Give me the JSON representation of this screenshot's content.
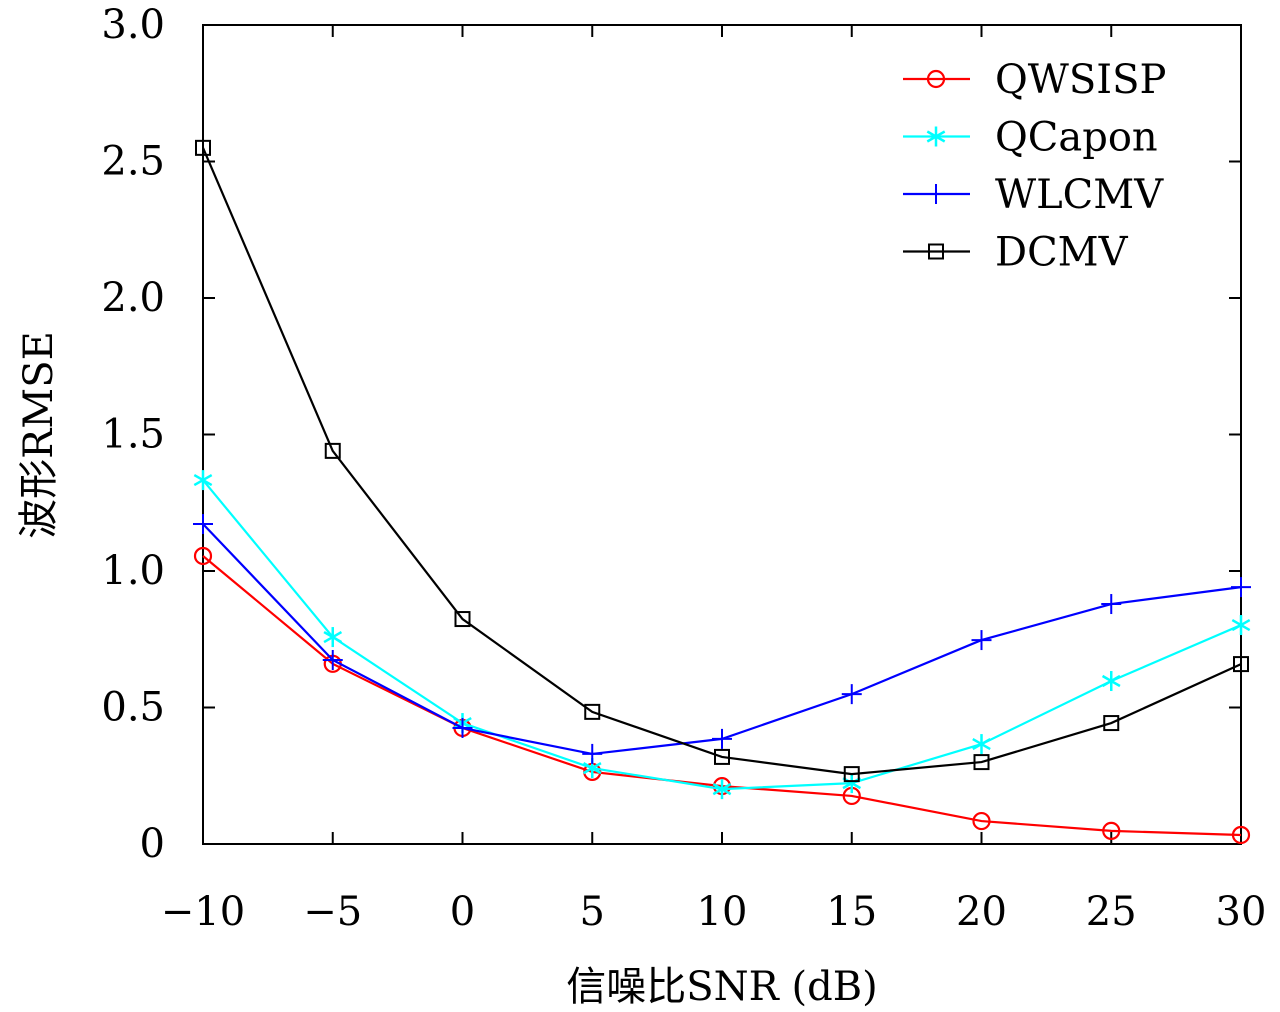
{
  "chart_data": {
    "type": "line",
    "title": "",
    "xlabel": "信噪比SNR (dB)",
    "ylabel": "波形RMSE",
    "xlim": [
      -10,
      30
    ],
    "ylim": [
      0,
      3.0
    ],
    "x": [
      -10,
      -5,
      0,
      5,
      10,
      15,
      20,
      25,
      30
    ],
    "xticks": [
      "−10",
      "−5",
      "0",
      "5",
      "10",
      "15",
      "20",
      "25",
      "30"
    ],
    "xtick_values": [
      -10,
      -5,
      0,
      5,
      10,
      15,
      20,
      25,
      30
    ],
    "yticks": [
      "0",
      "0.5",
      "1.0",
      "1.5",
      "2.0",
      "2.5",
      "3.0"
    ],
    "ytick_values": [
      0,
      0.5,
      1.0,
      1.5,
      2.0,
      2.5,
      3.0
    ],
    "grid": false,
    "legend": "top-right",
    "series": [
      {
        "name": "QWSISP",
        "color": "#ff0000",
        "marker": "circle",
        "values": [
          1.055,
          0.66,
          0.425,
          0.264,
          0.212,
          0.176,
          0.084,
          0.048,
          0.033
        ]
      },
      {
        "name": "QCapon",
        "color": "#00ffff",
        "marker": "asterisk",
        "values": [
          1.333,
          0.758,
          0.443,
          0.278,
          0.201,
          0.223,
          0.366,
          0.597,
          0.802
        ]
      },
      {
        "name": "WLCMV",
        "color": "#0000ff",
        "marker": "plus",
        "values": [
          1.172,
          0.674,
          0.425,
          0.33,
          0.385,
          0.549,
          0.747,
          0.879,
          0.941
        ]
      },
      {
        "name": "DCMV",
        "color": "#000000",
        "marker": "square",
        "values": [
          2.55,
          1.44,
          0.824,
          0.484,
          0.319,
          0.256,
          0.3,
          0.443,
          0.659
        ]
      }
    ]
  }
}
